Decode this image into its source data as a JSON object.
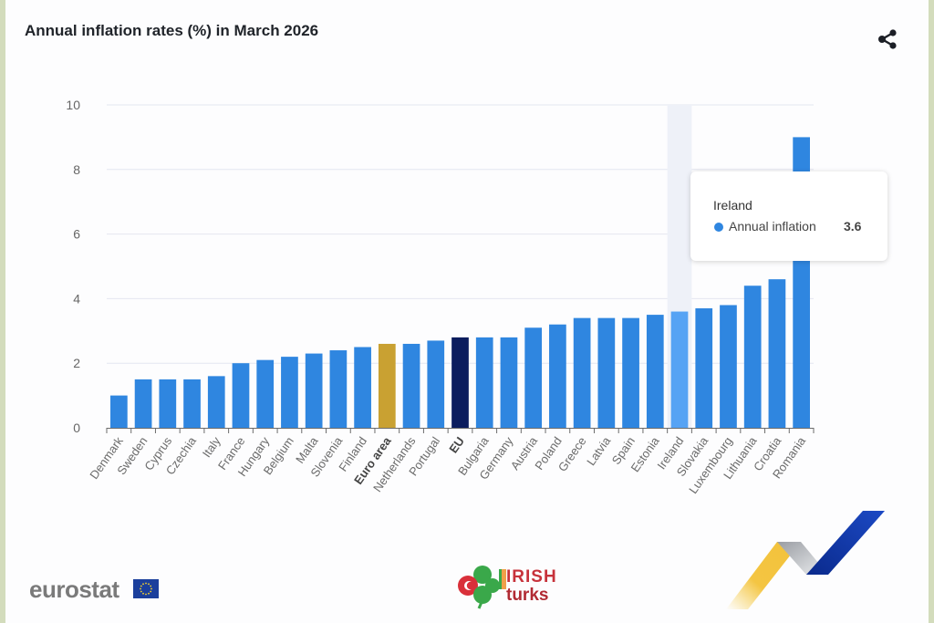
{
  "header": {
    "title": "Annual inflation rates (%) in March 2026",
    "share_icon": "share-icon"
  },
  "tooltip": {
    "category": "Ireland",
    "series_label": "Annual inflation",
    "value": "3.6",
    "dot_color": "#2f86e0"
  },
  "footer": {
    "eurostat_label": "eurostat",
    "partner_line1": "IRISH",
    "partner_line2": "turks"
  },
  "colors": {
    "bar": "#2f86e0",
    "euro_area": "#c9a132",
    "eu": "#0c1d5e",
    "hover": "#56a3f4",
    "hover_band": "#eef1f8",
    "grid": "#e4e6f0"
  },
  "chart_data": {
    "type": "bar",
    "title": "Annual inflation rates (%) in March 2026",
    "xlabel": "",
    "ylabel": "",
    "ylim": [
      0,
      10
    ],
    "yticks": [
      0,
      2,
      4,
      6,
      8,
      10
    ],
    "grid": true,
    "legend": "none",
    "highlighted_category": "Ireland",
    "aggregates": [
      "Euro area",
      "EU"
    ],
    "categories": [
      "Denmark",
      "Sweden",
      "Cyprus",
      "Czechia",
      "Italy",
      "France",
      "Hungary",
      "Belgium",
      "Malta",
      "Slovenia",
      "Finland",
      "Euro area",
      "Netherlands",
      "Portugal",
      "EU",
      "Bulgaria",
      "Germany",
      "Austria",
      "Poland",
      "Greece",
      "Latvia",
      "Spain",
      "Estonia",
      "Ireland",
      "Slovakia",
      "Luxembourg",
      "Lithuania",
      "Croatia",
      "Romania"
    ],
    "series": [
      {
        "name": "Annual inflation",
        "values": [
          1.0,
          1.5,
          1.5,
          1.5,
          1.6,
          2.0,
          2.1,
          2.2,
          2.3,
          2.4,
          2.5,
          2.6,
          2.6,
          2.7,
          2.8,
          2.8,
          2.8,
          3.1,
          3.2,
          3.4,
          3.4,
          3.4,
          3.5,
          3.6,
          3.7,
          3.8,
          4.4,
          4.6,
          9.0
        ]
      }
    ]
  }
}
